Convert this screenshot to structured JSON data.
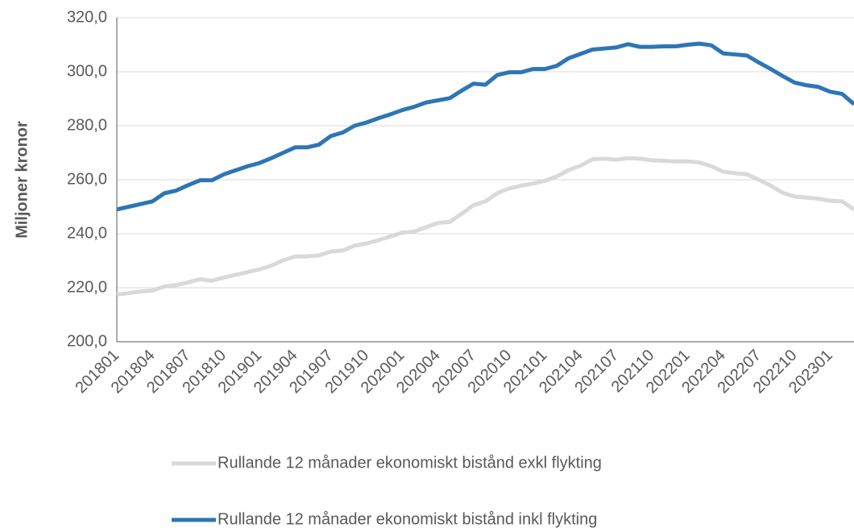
{
  "chart_data": {
    "type": "line",
    "y_label": "Miljoner kronor",
    "categories": [
      "201801",
      null,
      null,
      "201804",
      null,
      null,
      "201807",
      null,
      null,
      "201810",
      null,
      null,
      "201901",
      null,
      null,
      "201904",
      null,
      null,
      "201907",
      null,
      null,
      "201910",
      null,
      null,
      "202001",
      null,
      null,
      "202004",
      null,
      null,
      "202007",
      null,
      null,
      "202010",
      null,
      null,
      "202101",
      null,
      null,
      "202104",
      null,
      null,
      "202107",
      null,
      null,
      "202110",
      null,
      null,
      "202201",
      null,
      null,
      "202204",
      null,
      null,
      "202207",
      null,
      null,
      "202210",
      null,
      null,
      "202301",
      null,
      null
    ],
    "series": [
      {
        "name": "Rullande 12 månader ekonomiskt bistånd exkl flykting",
        "color": "#d9d9d9",
        "values": [
          217.5,
          218,
          218.6,
          219,
          220.5,
          221,
          222,
          223.2,
          222.6,
          223.8,
          224.8,
          225.8,
          226.8,
          228.2,
          230.2,
          231.6,
          231.6,
          232,
          233.4,
          233.8,
          235.6,
          236.4,
          237.6,
          239,
          240.4,
          240.8,
          242.4,
          244,
          244.4,
          247.4,
          250.6,
          252,
          255,
          256.8,
          257.8,
          258.6,
          259.6,
          261.2,
          263.6,
          265.2,
          267.6,
          267.8,
          267.4,
          268,
          267.8,
          267.2,
          267,
          266.8,
          266.8,
          266.4,
          265,
          263,
          262.4,
          262,
          260,
          257.8,
          255.2,
          253.8,
          253.4,
          253,
          252.2,
          252,
          249
        ]
      },
      {
        "name": "Rullande 12 månader ekonomiskt bistånd inkl flykting",
        "color": "#2e75b6",
        "values": [
          249,
          250,
          251,
          252,
          255,
          256,
          258,
          259.8,
          259.8,
          262,
          263.5,
          265,
          266.2,
          268,
          270,
          272,
          272,
          273,
          276.2,
          277.5,
          280,
          281.2,
          282.8,
          284.2,
          285.8,
          287,
          288.6,
          289.4,
          290.2,
          293,
          295.6,
          295.2,
          298.8,
          299.8,
          299.8,
          301,
          301,
          302.2,
          305,
          306.6,
          308.2,
          308.6,
          309,
          310.2,
          309.2,
          309.2,
          309.4,
          309.4,
          310,
          310.4,
          309.8,
          306.8,
          306.4,
          306,
          303.4,
          301,
          298.4,
          296,
          295,
          294.4,
          292.6,
          291.8,
          288
        ]
      }
    ],
    "ylim": [
      200,
      320
    ],
    "yticks": [
      {
        "value": 200,
        "label": "200,0"
      },
      {
        "value": 220,
        "label": "220,0"
      },
      {
        "value": 240,
        "label": "240,0"
      },
      {
        "value": 260,
        "label": "260,0"
      },
      {
        "value": 280,
        "label": "280,0"
      },
      {
        "value": 300,
        "label": "300,0"
      },
      {
        "value": 320,
        "label": "320,0"
      }
    ],
    "grid": true,
    "legend": "bottom"
  }
}
